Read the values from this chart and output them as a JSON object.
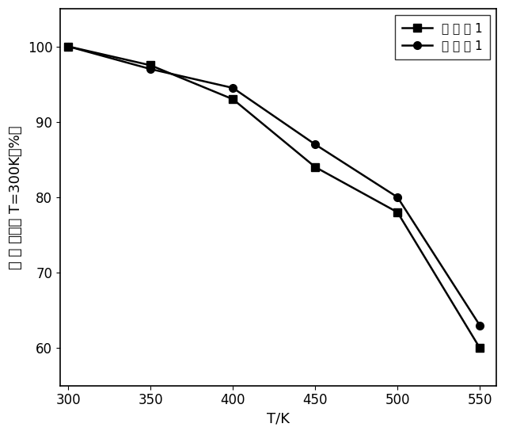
{
  "x": [
    300,
    350,
    400,
    450,
    500,
    550
  ],
  "series1_y": [
    100,
    97.5,
    93,
    84,
    78,
    60
  ],
  "series2_y": [
    100,
    97,
    94.5,
    87,
    80,
    63
  ],
  "series1_label": "对 比 例 1",
  "series2_label": "实 施 例 1",
  "xlabel": "T/K",
  "ylabel": "效 率 相对于 T=300K（%）",
  "xlim": [
    295,
    560
  ],
  "ylim": [
    55,
    105
  ],
  "xticks": [
    300,
    350,
    400,
    450,
    500,
    550
  ],
  "yticks": [
    60,
    70,
    80,
    90,
    100
  ],
  "line_color": "#000000",
  "marker1": "s",
  "marker2": "o",
  "markersize": 7,
  "linewidth": 1.8,
  "label_fontsize": 13,
  "tick_fontsize": 12,
  "legend_fontsize": 11
}
